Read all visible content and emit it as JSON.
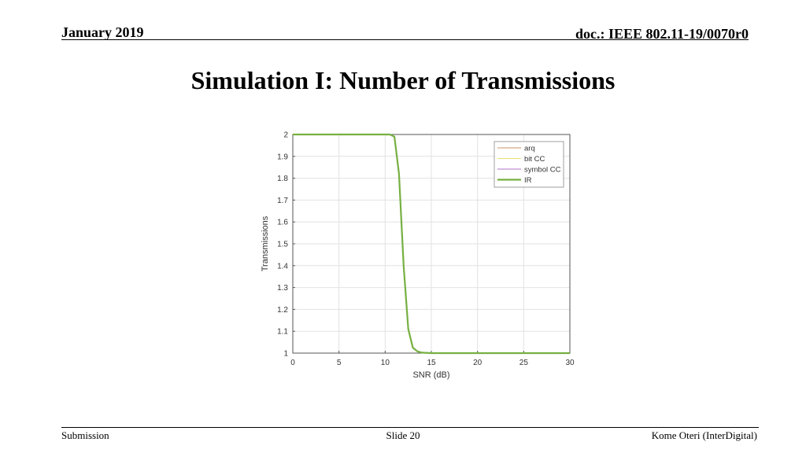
{
  "header": {
    "date": "January 2019",
    "doc": "doc.: IEEE 802.11-19/0070r0"
  },
  "slide_title": "Simulation I: Number of Transmissions",
  "footer": {
    "left": "Submission",
    "center": "Slide 20",
    "right": "Kome Oteri (InterDigital)"
  },
  "chart_data": {
    "type": "line",
    "title": "",
    "xlabel": "SNR (dB)",
    "ylabel": "Transmissions",
    "xlim": [
      0,
      30
    ],
    "ylim": [
      1,
      2
    ],
    "xticks": [
      "0",
      "5",
      "10",
      "15",
      "20",
      "25",
      "30"
    ],
    "yticks": [
      "1",
      "1.1",
      "1.2",
      "1.3",
      "1.4",
      "1.5",
      "1.6",
      "1.7",
      "1.8",
      "1.9",
      "2"
    ],
    "grid": true,
    "legend_position": "top-right",
    "x": [
      0,
      10.5,
      11,
      11.5,
      12,
      12.5,
      13,
      13.5,
      14,
      15,
      30
    ],
    "series": [
      {
        "name": "arq",
        "color": "#c8936a",
        "width": 1,
        "values": [
          2,
          2,
          1.99,
          1.82,
          1.4,
          1.11,
          1.025,
          1.008,
          1.002,
          1,
          1
        ]
      },
      {
        "name": "bit CC",
        "color": "#e8e070",
        "width": 1,
        "values": [
          2,
          2,
          1.99,
          1.82,
          1.4,
          1.11,
          1.025,
          1.008,
          1.002,
          1,
          1
        ]
      },
      {
        "name": "symbol CC",
        "color": "#b070c8",
        "width": 1,
        "values": [
          2,
          2,
          1.99,
          1.82,
          1.4,
          1.11,
          1.025,
          1.008,
          1.002,
          1,
          1
        ]
      },
      {
        "name": "IR",
        "color": "#76b041",
        "width": 2.2,
        "values": [
          2,
          2,
          1.99,
          1.82,
          1.4,
          1.11,
          1.025,
          1.008,
          1.002,
          1,
          1
        ]
      }
    ]
  }
}
